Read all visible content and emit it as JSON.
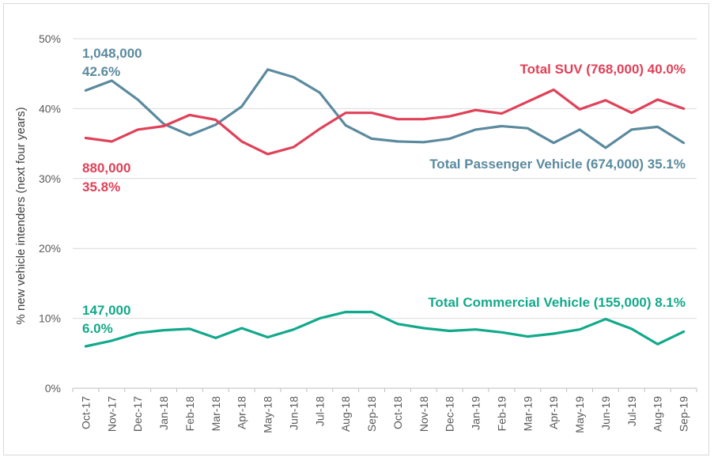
{
  "chart_data": {
    "type": "line",
    "title": "",
    "xlabel": "",
    "ylabel": "% new vehicle intenders (next four years)",
    "ylim": [
      0,
      50
    ],
    "y_ticks": [
      "0%",
      "10%",
      "20%",
      "30%",
      "40%",
      "50%"
    ],
    "grid": "horizontal",
    "categories": [
      "Oct-17",
      "Nov-17",
      "Dec-17",
      "Jan-18",
      "Feb-18",
      "Mar-18",
      "Apr-18",
      "May-18",
      "Jun-18",
      "Jul-18",
      "Aug-18",
      "Sep-18",
      "Oct-18",
      "Nov-18",
      "Dec-18",
      "Jan-19",
      "Feb-19",
      "Mar-19",
      "Apr-19",
      "May-19",
      "Jun-19",
      "Jul-19",
      "Aug-19",
      "Sep-19"
    ],
    "series": [
      {
        "name": "Total Passenger Vehicle",
        "color": "#5B8A9E",
        "values": [
          42.6,
          44.0,
          41.3,
          37.8,
          36.2,
          37.7,
          40.3,
          45.6,
          44.5,
          42.3,
          37.6,
          35.7,
          35.3,
          35.2,
          35.7,
          37.0,
          37.5,
          37.2,
          35.1,
          37.0,
          34.4,
          37.0,
          37.4,
          35.1
        ]
      },
      {
        "name": "Total SUV",
        "color": "#E04158",
        "values": [
          35.8,
          35.3,
          37.0,
          37.5,
          39.1,
          38.4,
          35.3,
          33.5,
          34.5,
          37.1,
          39.4,
          39.4,
          38.5,
          38.5,
          38.9,
          39.8,
          39.3,
          41.0,
          42.7,
          39.9,
          41.2,
          39.4,
          41.3,
          40.0
        ]
      },
      {
        "name": "Total Commercial Vehicle",
        "color": "#12A98A",
        "values": [
          6.0,
          6.8,
          7.9,
          8.3,
          8.5,
          7.2,
          8.6,
          7.3,
          8.4,
          10.0,
          10.9,
          10.9,
          9.2,
          8.6,
          8.2,
          8.4,
          8.0,
          7.4,
          7.8,
          8.4,
          9.9,
          8.5,
          6.3,
          8.1
        ]
      }
    ],
    "annotations": {
      "passenger_start_count": "1,048,000",
      "passenger_start_pct": "42.6%",
      "suv_start_count": "880,000",
      "suv_start_pct": "35.8%",
      "commercial_start_count": "147,000",
      "commercial_start_pct": "6.0%",
      "suv_end": "Total SUV (768,000) 40.0%",
      "passenger_end": "Total Passenger Vehicle (674,000) 35.1%",
      "commercial_end": "Total Commercial Vehicle (155,000) 8.1%"
    }
  }
}
